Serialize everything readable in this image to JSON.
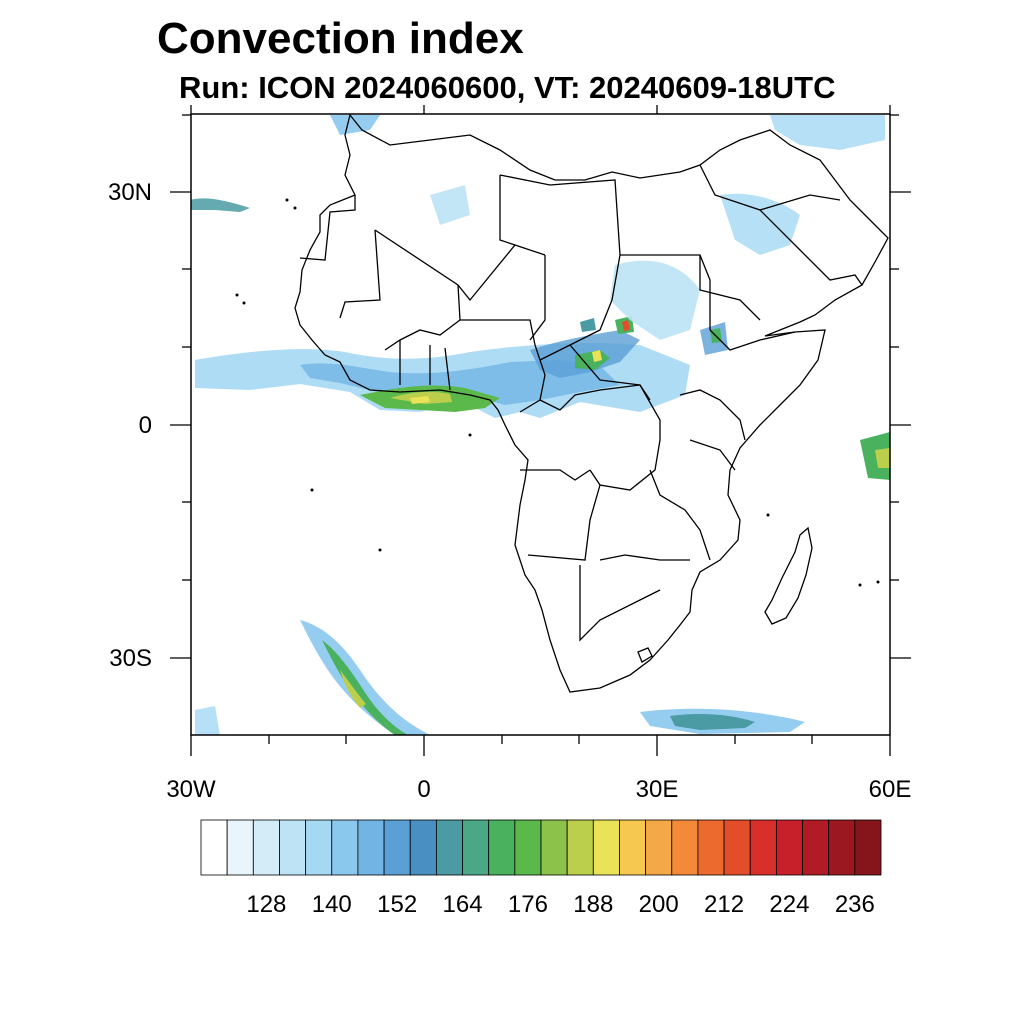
{
  "title": "Convection index",
  "subtitle": "Run: ICON 2024060600,  VT: 20240609-18UTC",
  "map": {
    "extent": {
      "lon": [
        -30,
        60
      ],
      "lat": [
        -40,
        40
      ]
    },
    "y_ticks": [
      {
        "lat": 30,
        "label": "30N"
      },
      {
        "lat": 0,
        "label": "0"
      },
      {
        "lat": -30,
        "label": "30S"
      }
    ],
    "x_ticks": [
      {
        "lon": -30,
        "label": "30W"
      },
      {
        "lon": 0,
        "label": "0"
      },
      {
        "lon": 30,
        "label": "30E"
      },
      {
        "lon": 60,
        "label": "60E"
      }
    ]
  },
  "colorbar": {
    "labels": [
      "128",
      "140",
      "152",
      "164",
      "176",
      "188",
      "200",
      "212",
      "224",
      "236"
    ],
    "colors": [
      "#ffffff",
      "#e9f5fb",
      "#d3ecf8",
      "#bde3f5",
      "#a4d8f3",
      "#8ac8ee",
      "#72b5e5",
      "#5a9fd6",
      "#4a8fc2",
      "#4a9ba3",
      "#4aa886",
      "#4ab25f",
      "#5ab94a",
      "#8cc24a",
      "#bccf4c",
      "#eae257",
      "#f7c850",
      "#f5a848",
      "#f28a3a",
      "#ec6a2e",
      "#e34d2a",
      "#d82f2a",
      "#c7202b",
      "#b01b26",
      "#9b1820",
      "#86151b"
    ]
  }
}
